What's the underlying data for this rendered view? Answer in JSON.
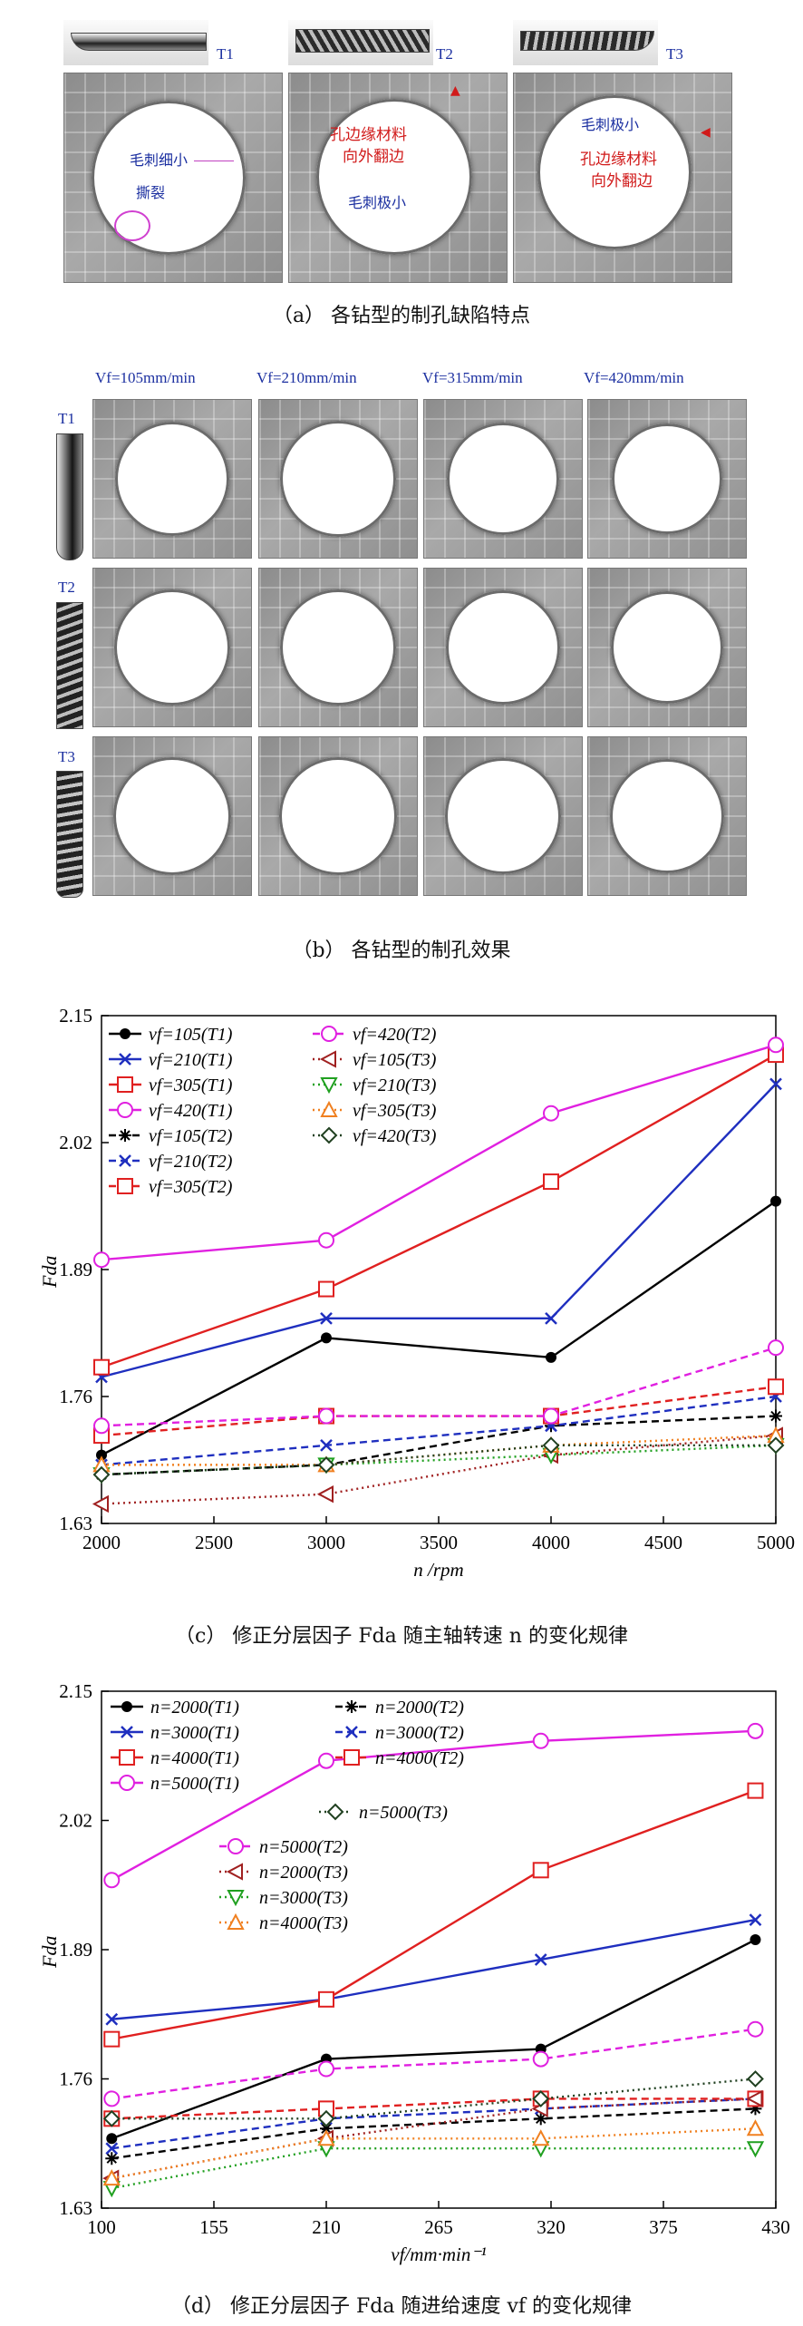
{
  "panel_a": {
    "tool_labels": [
      "T1",
      "T2",
      "T3"
    ],
    "annotations": {
      "t1_burr": "毛刺细小",
      "t1_tear": "撕裂",
      "t2_red_1": "孔边缘材料",
      "t2_red_2": "向外翻边",
      "t2_blue": "毛刺极小",
      "t3_blue": "毛刺极小",
      "t3_red_1": "孔边缘材料",
      "t3_red_2": "向外翻边"
    },
    "caption": "（a）  各钻型的制孔缺陷特点"
  },
  "panel_b": {
    "feed_labels": [
      "Vf=105mm/min",
      "Vf=210mm/min",
      "Vf=315mm/min",
      "Vf=420mm/min"
    ],
    "row_labels": [
      "T1",
      "T2",
      "T3"
    ],
    "caption": "（b）  各钻型的制孔效果"
  },
  "panel_c_caption": "（c）  修正分层因子 Fda 随主轴转速 n 的变化规律",
  "panel_d_caption": "（d）  修正分层因子 Fda 随进给速度 vf 的变化规律",
  "chart_data": [
    {
      "type": "line",
      "xlabel": "n /rpm",
      "ylabel": "Fda",
      "x": [
        2000,
        3000,
        4000,
        5000
      ],
      "xlim": [
        2000,
        5000
      ],
      "ylim": [
        1.63,
        2.15
      ],
      "xticks": [
        "2000",
        "2500",
        "3000",
        "3500",
        "4000",
        "4500",
        "5000"
      ],
      "yticks": [
        "1.63",
        "1.76",
        "1.89",
        "2.02",
        "2.15"
      ],
      "series": [
        {
          "name": "vf=105(T1)",
          "color": "#000000",
          "marker": "dot",
          "dash": "solid",
          "values": [
            1.7,
            1.82,
            1.8,
            1.96
          ]
        },
        {
          "name": "vf=210(T1)",
          "color": "#1f2fbf",
          "marker": "x",
          "dash": "solid",
          "values": [
            1.78,
            1.84,
            1.84,
            2.08
          ]
        },
        {
          "name": "vf=305(T1)",
          "color": "#e02020",
          "marker": "square",
          "dash": "solid",
          "values": [
            1.79,
            1.87,
            1.98,
            2.11
          ]
        },
        {
          "name": "vf=420(T1)",
          "color": "#e020e0",
          "marker": "circle",
          "dash": "solid",
          "values": [
            1.9,
            1.92,
            2.05,
            2.12
          ]
        },
        {
          "name": "vf=105(T2)",
          "color": "#000000",
          "marker": "star",
          "dash": "dashed",
          "values": [
            1.68,
            1.69,
            1.73,
            1.74
          ]
        },
        {
          "name": "vf=210(T2)",
          "color": "#1f2fbf",
          "marker": "x",
          "dash": "dashed",
          "values": [
            1.69,
            1.71,
            1.73,
            1.76
          ]
        },
        {
          "name": "vf=305(T2)",
          "color": "#e02020",
          "marker": "square",
          "dash": "dashed",
          "values": [
            1.72,
            1.74,
            1.74,
            1.77
          ]
        },
        {
          "name": "vf=420(T2)",
          "color": "#e020e0",
          "marker": "circle",
          "dash": "dashed",
          "values": [
            1.73,
            1.74,
            1.74,
            1.81
          ]
        },
        {
          "name": "vf=105(T3)",
          "color": "#a02020",
          "marker": "tri-left",
          "dash": "dotted",
          "values": [
            1.65,
            1.66,
            1.7,
            1.72
          ]
        },
        {
          "name": "vf=210(T3)",
          "color": "#20a020",
          "marker": "tri-down",
          "dash": "dotted",
          "values": [
            1.68,
            1.69,
            1.7,
            1.71
          ]
        },
        {
          "name": "vf=305(T3)",
          "color": "#f08020",
          "marker": "tri-up",
          "dash": "dotted",
          "values": [
            1.69,
            1.69,
            1.71,
            1.72
          ]
        },
        {
          "name": "vf=420(T3)",
          "color": "#204020",
          "marker": "diamond",
          "dash": "dotted",
          "values": [
            1.68,
            1.69,
            1.71,
            1.71
          ]
        }
      ]
    },
    {
      "type": "line",
      "xlabel": "vf/mm·min⁻¹",
      "ylabel": "Fda",
      "x": [
        105,
        210,
        315,
        420
      ],
      "xlim": [
        100,
        430
      ],
      "ylim": [
        1.63,
        2.15
      ],
      "xticks": [
        "100",
        "155",
        "210",
        "265",
        "320",
        "375",
        "430"
      ],
      "yticks": [
        "1.63",
        "1.76",
        "1.89",
        "2.02",
        "2.15"
      ],
      "series": [
        {
          "name": "n=2000(T1)",
          "color": "#000000",
          "marker": "dot",
          "dash": "solid",
          "values": [
            1.7,
            1.78,
            1.79,
            1.9
          ]
        },
        {
          "name": "n=3000(T1)",
          "color": "#1f2fbf",
          "marker": "x",
          "dash": "solid",
          "values": [
            1.82,
            1.84,
            1.88,
            1.92
          ]
        },
        {
          "name": "n=4000(T1)",
          "color": "#e02020",
          "marker": "square",
          "dash": "solid",
          "values": [
            1.8,
            1.84,
            1.97,
            2.05
          ]
        },
        {
          "name": "n=5000(T1)",
          "color": "#e020e0",
          "marker": "circle",
          "dash": "solid",
          "values": [
            1.96,
            2.08,
            2.1,
            2.11
          ]
        },
        {
          "name": "n=2000(T2)",
          "color": "#000000",
          "marker": "star",
          "dash": "dashed",
          "values": [
            1.68,
            1.71,
            1.72,
            1.73
          ]
        },
        {
          "name": "n=3000(T2)",
          "color": "#1f2fbf",
          "marker": "x",
          "dash": "dashed",
          "values": [
            1.69,
            1.72,
            1.73,
            1.74
          ]
        },
        {
          "name": "n=4000(T2)",
          "color": "#e02020",
          "marker": "square",
          "dash": "dashed",
          "values": [
            1.72,
            1.73,
            1.74,
            1.74
          ]
        },
        {
          "name": "n=5000(T2)",
          "color": "#e020e0",
          "marker": "circle",
          "dash": "dashed",
          "values": [
            1.74,
            1.77,
            1.78,
            1.81
          ]
        },
        {
          "name": "n=2000(T3)",
          "color": "#a02020",
          "marker": "tri-left",
          "dash": "dotted",
          "values": [
            1.66,
            1.7,
            1.73,
            1.74
          ]
        },
        {
          "name": "n=3000(T3)",
          "color": "#20a020",
          "marker": "tri-down",
          "dash": "dotted",
          "values": [
            1.65,
            1.69,
            1.69,
            1.69
          ]
        },
        {
          "name": "n=4000(T3)",
          "color": "#f08020",
          "marker": "tri-up",
          "dash": "dotted",
          "values": [
            1.66,
            1.7,
            1.7,
            1.71
          ]
        },
        {
          "name": "n=5000(T3)",
          "color": "#204020",
          "marker": "diamond",
          "dash": "dotted",
          "values": [
            1.72,
            1.72,
            1.74,
            1.76
          ]
        }
      ]
    }
  ]
}
